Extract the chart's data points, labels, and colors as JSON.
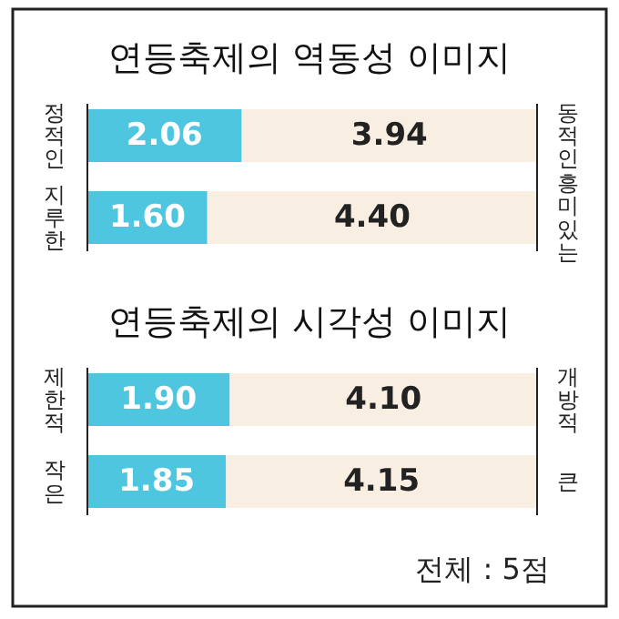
{
  "chart_data": [
    {
      "type": "bar",
      "orientation": "horizontal",
      "stacked": true,
      "title": "연등축제의 역동성 이미지",
      "categories": [
        "정적인",
        "지루한"
      ],
      "series": [
        {
          "color": "#4fc6e0",
          "values": [
            2.06,
            1.6
          ],
          "value_labels": [
            "2.06",
            "1.60"
          ]
        },
        {
          "color": "#f8efe2",
          "values": [
            3.94,
            4.4
          ],
          "value_labels": [
            "3.94",
            "4.40"
          ]
        }
      ],
      "annotations": [
        "동적인",
        "흥미있는"
      ]
    },
    {
      "type": "bar",
      "orientation": "horizontal",
      "stacked": true,
      "title": "연등축제의 시각성 이미지",
      "categories": [
        "제한적",
        "작은"
      ],
      "series": [
        {
          "color": "#4fc6e0",
          "values": [
            1.9,
            1.85
          ],
          "value_labels": [
            "1.90",
            "1.85"
          ]
        },
        {
          "color": "#f8efe2",
          "values": [
            4.1,
            4.15
          ],
          "value_labels": [
            "4.10",
            "4.15"
          ]
        }
      ],
      "annotations": [
        "개방적",
        "큰",
        "전체 : 5점"
      ]
    }
  ]
}
